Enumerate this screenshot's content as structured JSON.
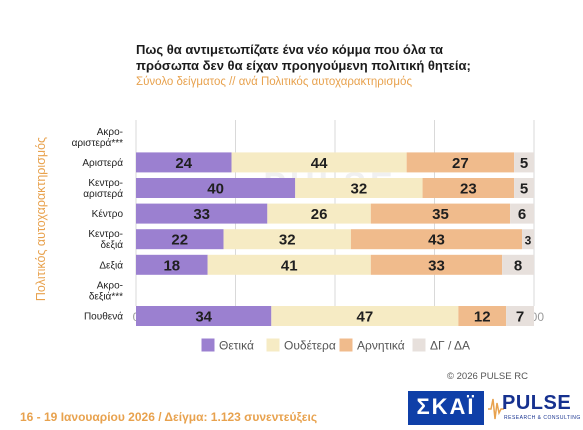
{
  "title_lines": [
    "Πως θα αντιμετωπίζατε ένα νέο κόμμα που όλα τα",
    "πρόσωπα δεν θα είχαν προηγούμενη πολιτική θητεία;"
  ],
  "subtitle": "Σύνολο δείγματος // ανά Πολιτικός αυτοχαρακτηρισμός",
  "footer": "16 - 19 Ιανουαρίου 2026  /  Δείγμα:  1.123 συνεντεύξεις",
  "copyright": "© 2026 PULSE RC",
  "logos": {
    "skai": "ΣΚΑΪ",
    "pulse": "PULSE",
    "pulse_sub": "RESEARCH & CONSULTING"
  },
  "watermark": "PULSE",
  "chart_data": {
    "type": "bar",
    "orientation": "horizontal",
    "stacked": true,
    "ylabel": "Πολιτικός αυτοχαρακτηρισμός",
    "xlim": [
      0,
      100
    ],
    "xticks": [
      0,
      25,
      50,
      75,
      100
    ],
    "grid": true,
    "legend_position": "bottom",
    "categories": [
      [
        "Ακρο-",
        "αριστερά***"
      ],
      [
        "Αριστερά"
      ],
      [
        "Κεντρο-",
        "αριστερά"
      ],
      [
        "Κέντρο"
      ],
      [
        "Κεντρο-",
        "δεξιά"
      ],
      [
        "Δεξιά"
      ],
      [
        "Ακρο-",
        "δεξιά***"
      ],
      [
        "Πουθενά"
      ]
    ],
    "series": [
      {
        "name": "Θετικά",
        "color": "#9b80d0",
        "values": [
          null,
          24,
          40,
          33,
          22,
          18,
          null,
          34
        ]
      },
      {
        "name": "Ουδέτερα",
        "color": "#f6ebc4",
        "values": [
          null,
          44,
          32,
          26,
          32,
          41,
          null,
          47
        ]
      },
      {
        "name": "Αρνητικά",
        "color": "#f0bb8c",
        "values": [
          null,
          27,
          23,
          35,
          43,
          33,
          null,
          12
        ]
      },
      {
        "name": "ΔΓ / ΔΑ",
        "color": "#e7e0dc",
        "values": [
          null,
          5,
          5,
          6,
          3,
          8,
          null,
          7
        ]
      }
    ]
  }
}
